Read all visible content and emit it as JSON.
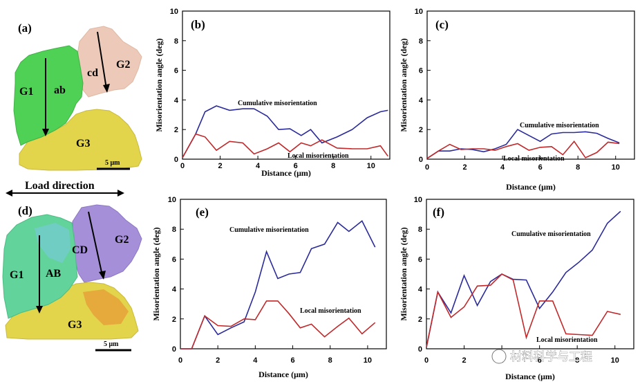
{
  "left_panels": {
    "a": {
      "letter": "(a)",
      "grains": {
        "g1": "G1",
        "g2": "G2",
        "g3": "G3"
      },
      "line_label": "ab",
      "line2_label": "cd",
      "scale": "5 μm"
    },
    "load_direction": "Load direction",
    "d": {
      "letter": "(d)",
      "grains": {
        "g1": "G1",
        "g2": "G2",
        "g3": "G3"
      },
      "line_label": "AB",
      "line2_label": "CD",
      "scale": "5 μm"
    }
  },
  "colors": {
    "cumulative": "#2a2a9a",
    "local": "#c0282a",
    "grain_green": "#4fd155",
    "grain_pink": "#ecc9b8",
    "grain_yellow": "#e2d54c",
    "grain_teal": "#62d39a",
    "grain_purple": "#a58fd8",
    "grain_orange": "#e6a23a"
  },
  "watermark": "材料科学与工程",
  "chart_data": [
    {
      "id": "b",
      "letter": "(b)",
      "type": "line",
      "xlabel": "Distance (μm)",
      "ylabel": "Misorientation angle (deg)",
      "xlim": [
        0,
        11
      ],
      "ylim": [
        0,
        10
      ],
      "xticks": [
        0,
        2,
        4,
        6,
        8,
        10
      ],
      "yticks": [
        0,
        2,
        4,
        6,
        8,
        10
      ],
      "series": [
        {
          "name": "Cumulative misorientation",
          "color": "#2a2a9a",
          "x": [
            0,
            0.7,
            1.2,
            1.8,
            2.5,
            3.2,
            3.8,
            4.5,
            5.1,
            5.7,
            6.3,
            6.8,
            7.4,
            8.2,
            9.0,
            9.8,
            10.5,
            10.9
          ],
          "y": [
            0.1,
            1.7,
            3.2,
            3.6,
            3.3,
            3.4,
            3.4,
            2.9,
            2.0,
            2.05,
            1.6,
            2.0,
            1.1,
            1.5,
            2.0,
            2.8,
            3.2,
            3.3
          ]
        },
        {
          "name": "Local misorientation",
          "color": "#c0282a",
          "x": [
            0,
            0.7,
            1.2,
            1.8,
            2.5,
            3.2,
            3.8,
            4.5,
            5.1,
            5.7,
            6.3,
            6.8,
            7.4,
            8.2,
            9.0,
            9.8,
            10.5,
            10.9
          ],
          "y": [
            0.1,
            1.7,
            1.5,
            0.6,
            1.2,
            1.1,
            0.35,
            0.7,
            1.1,
            0.5,
            1.1,
            0.9,
            1.3,
            0.75,
            0.7,
            0.7,
            0.9,
            0.2
          ]
        }
      ],
      "annotations": [
        "Cumulative misorientation",
        "Local misorientation"
      ]
    },
    {
      "id": "c",
      "letter": "(c)",
      "type": "line",
      "xlabel": "Distance (μm)",
      "ylabel": "Misorientation angle (deg)",
      "xlim": [
        0,
        11
      ],
      "ylim": [
        0,
        10
      ],
      "xticks": [
        0,
        2,
        4,
        6,
        8,
        10
      ],
      "yticks": [
        0,
        2,
        4,
        6,
        8,
        10
      ],
      "series": [
        {
          "name": "Cumulative misorientation",
          "color": "#2a2a9a",
          "x": [
            0,
            0.6,
            1.2,
            1.8,
            2.4,
            3.0,
            3.6,
            4.2,
            4.8,
            5.4,
            6.0,
            6.6,
            7.2,
            7.8,
            8.4,
            9.0,
            9.6,
            10.2
          ],
          "y": [
            0.05,
            0.55,
            0.55,
            0.7,
            0.65,
            0.5,
            0.7,
            1.0,
            2.0,
            1.6,
            1.2,
            1.7,
            1.8,
            1.8,
            1.85,
            1.75,
            1.4,
            1.1
          ]
        },
        {
          "name": "Local misorientation",
          "color": "#c0282a",
          "x": [
            0,
            0.6,
            1.2,
            1.8,
            2.4,
            3.0,
            3.6,
            4.2,
            4.8,
            5.4,
            6.0,
            6.6,
            7.2,
            7.8,
            8.4,
            9.0,
            9.6,
            10.2
          ],
          "y": [
            0.05,
            0.55,
            1.0,
            0.65,
            0.7,
            0.7,
            0.6,
            0.85,
            1.05,
            0.6,
            0.8,
            0.85,
            0.3,
            1.2,
            0.1,
            0.45,
            1.15,
            1.05
          ]
        }
      ],
      "annotations": [
        "Cumulative misorientation",
        "Local misorientation"
      ]
    },
    {
      "id": "e",
      "letter": "(e)",
      "type": "line",
      "xlabel": "Distance (μm)",
      "ylabel": "Misorientation angle (deg)",
      "xlim": [
        0,
        11
      ],
      "ylim": [
        0,
        10
      ],
      "xticks": [
        0,
        2,
        4,
        6,
        8,
        10
      ],
      "yticks": [
        0,
        2,
        4,
        6,
        8,
        10
      ],
      "series": [
        {
          "name": "Cumulative misorientation",
          "color": "#2a2a9a",
          "x": [
            0,
            0.6,
            1.3,
            2.0,
            2.7,
            3.4,
            4.0,
            4.6,
            5.2,
            5.8,
            6.4,
            7.0,
            7.7,
            8.4,
            9.0,
            9.7,
            10.4
          ],
          "y": [
            0,
            0,
            2.2,
            0.95,
            1.4,
            1.8,
            3.8,
            6.5,
            4.7,
            5.0,
            5.1,
            6.7,
            7.0,
            8.45,
            7.85,
            8.55,
            6.8
          ]
        },
        {
          "name": "Local misorientation",
          "color": "#c0282a",
          "x": [
            0,
            0.6,
            1.3,
            2.0,
            2.7,
            3.4,
            4.0,
            4.6,
            5.2,
            5.8,
            6.4,
            7.0,
            7.7,
            8.4,
            9.0,
            9.7,
            10.4
          ],
          "y": [
            0,
            0,
            2.2,
            1.55,
            1.5,
            2.0,
            1.95,
            3.2,
            3.2,
            2.35,
            1.4,
            1.65,
            0.8,
            1.5,
            2.05,
            1.0,
            1.75
          ]
        }
      ],
      "annotations": [
        "Cumulative misorientation",
        "Local misorientation"
      ]
    },
    {
      "id": "f",
      "letter": "(f)",
      "type": "line",
      "xlabel": "Distance (μm)",
      "ylabel": "Misorientation angle (deg)",
      "xlim": [
        0,
        11
      ],
      "ylim": [
        0,
        10
      ],
      "xticks": [
        0,
        2,
        4,
        6,
        8,
        10
      ],
      "yticks": [
        0,
        2,
        4,
        6,
        8,
        10
      ],
      "series": [
        {
          "name": "Cumulative misorientation",
          "color": "#2a2a9a",
          "x": [
            0,
            0.6,
            1.3,
            2.0,
            2.7,
            3.4,
            4.0,
            4.6,
            5.3,
            6.0,
            6.7,
            7.4,
            8.1,
            8.8,
            9.6,
            10.3
          ],
          "y": [
            0.1,
            3.8,
            2.4,
            4.9,
            2.9,
            4.5,
            5.0,
            4.65,
            4.6,
            2.7,
            3.8,
            5.1,
            5.8,
            6.6,
            8.4,
            9.2
          ]
        },
        {
          "name": "Local misorientation",
          "color": "#c0282a",
          "x": [
            0,
            0.6,
            1.3,
            2.0,
            2.7,
            3.4,
            4.0,
            4.6,
            5.3,
            6.0,
            6.7,
            7.4,
            8.1,
            8.8,
            9.6,
            10.3
          ],
          "y": [
            0.1,
            3.8,
            2.1,
            2.8,
            4.2,
            4.25,
            5.0,
            4.6,
            0.75,
            3.2,
            3.2,
            1.0,
            0.95,
            0.9,
            2.5,
            2.3
          ]
        }
      ],
      "annotations": [
        "Cumulative misorientation",
        "Local misorientation"
      ]
    }
  ]
}
